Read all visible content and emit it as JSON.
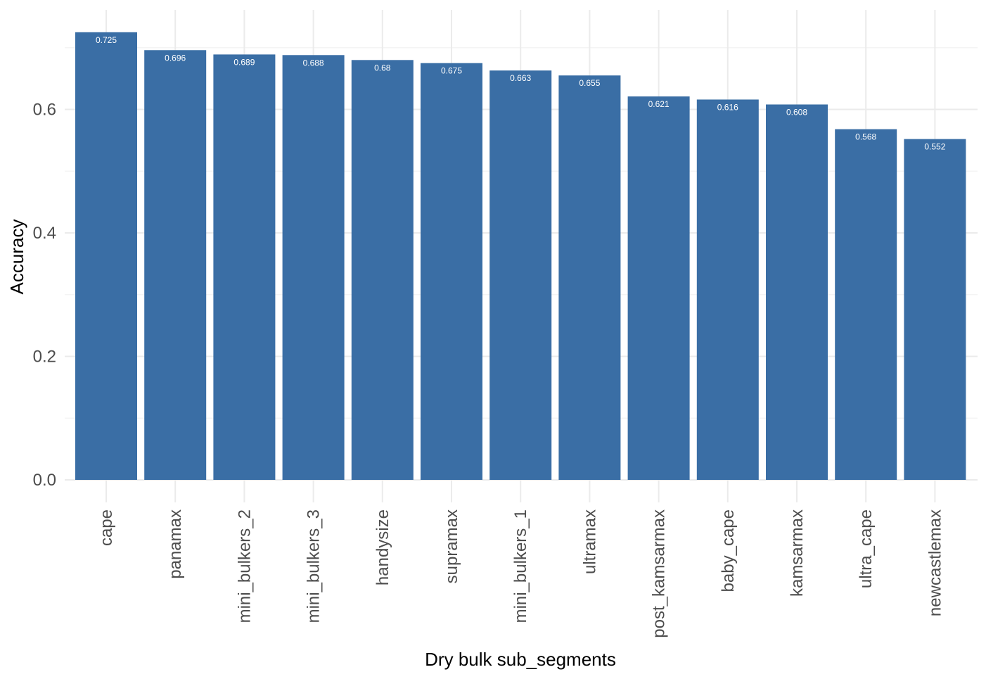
{
  "chart_data": {
    "type": "bar",
    "title": "",
    "xlabel": "Dry bulk sub_segments",
    "ylabel": "Accuracy",
    "ylim": [
      0,
      0.725
    ],
    "yticks": [
      "0.0",
      "0.2",
      "0.4",
      "0.6"
    ],
    "grid": true,
    "legend": "none",
    "bar_color": "#3a6ea5",
    "grid_color": "#ebebeb",
    "categories": [
      "cape",
      "panamax",
      "mini_bulkers_2",
      "mini_bulkers_3",
      "handysize",
      "supramax",
      "mini_bulkers_1",
      "ultramax",
      "post_kamsarmax",
      "baby_cape",
      "kamsarmax",
      "ultra_cape",
      "newcastlemax"
    ],
    "values": [
      0.725,
      0.696,
      0.689,
      0.688,
      0.68,
      0.675,
      0.663,
      0.655,
      0.621,
      0.616,
      0.608,
      0.568,
      0.552
    ],
    "value_labels": [
      "0.725",
      "0.696",
      "0.689",
      "0.688",
      "0.68",
      "0.675",
      "0.663",
      "0.655",
      "0.621",
      "0.616",
      "0.608",
      "0.568",
      "0.552"
    ]
  }
}
